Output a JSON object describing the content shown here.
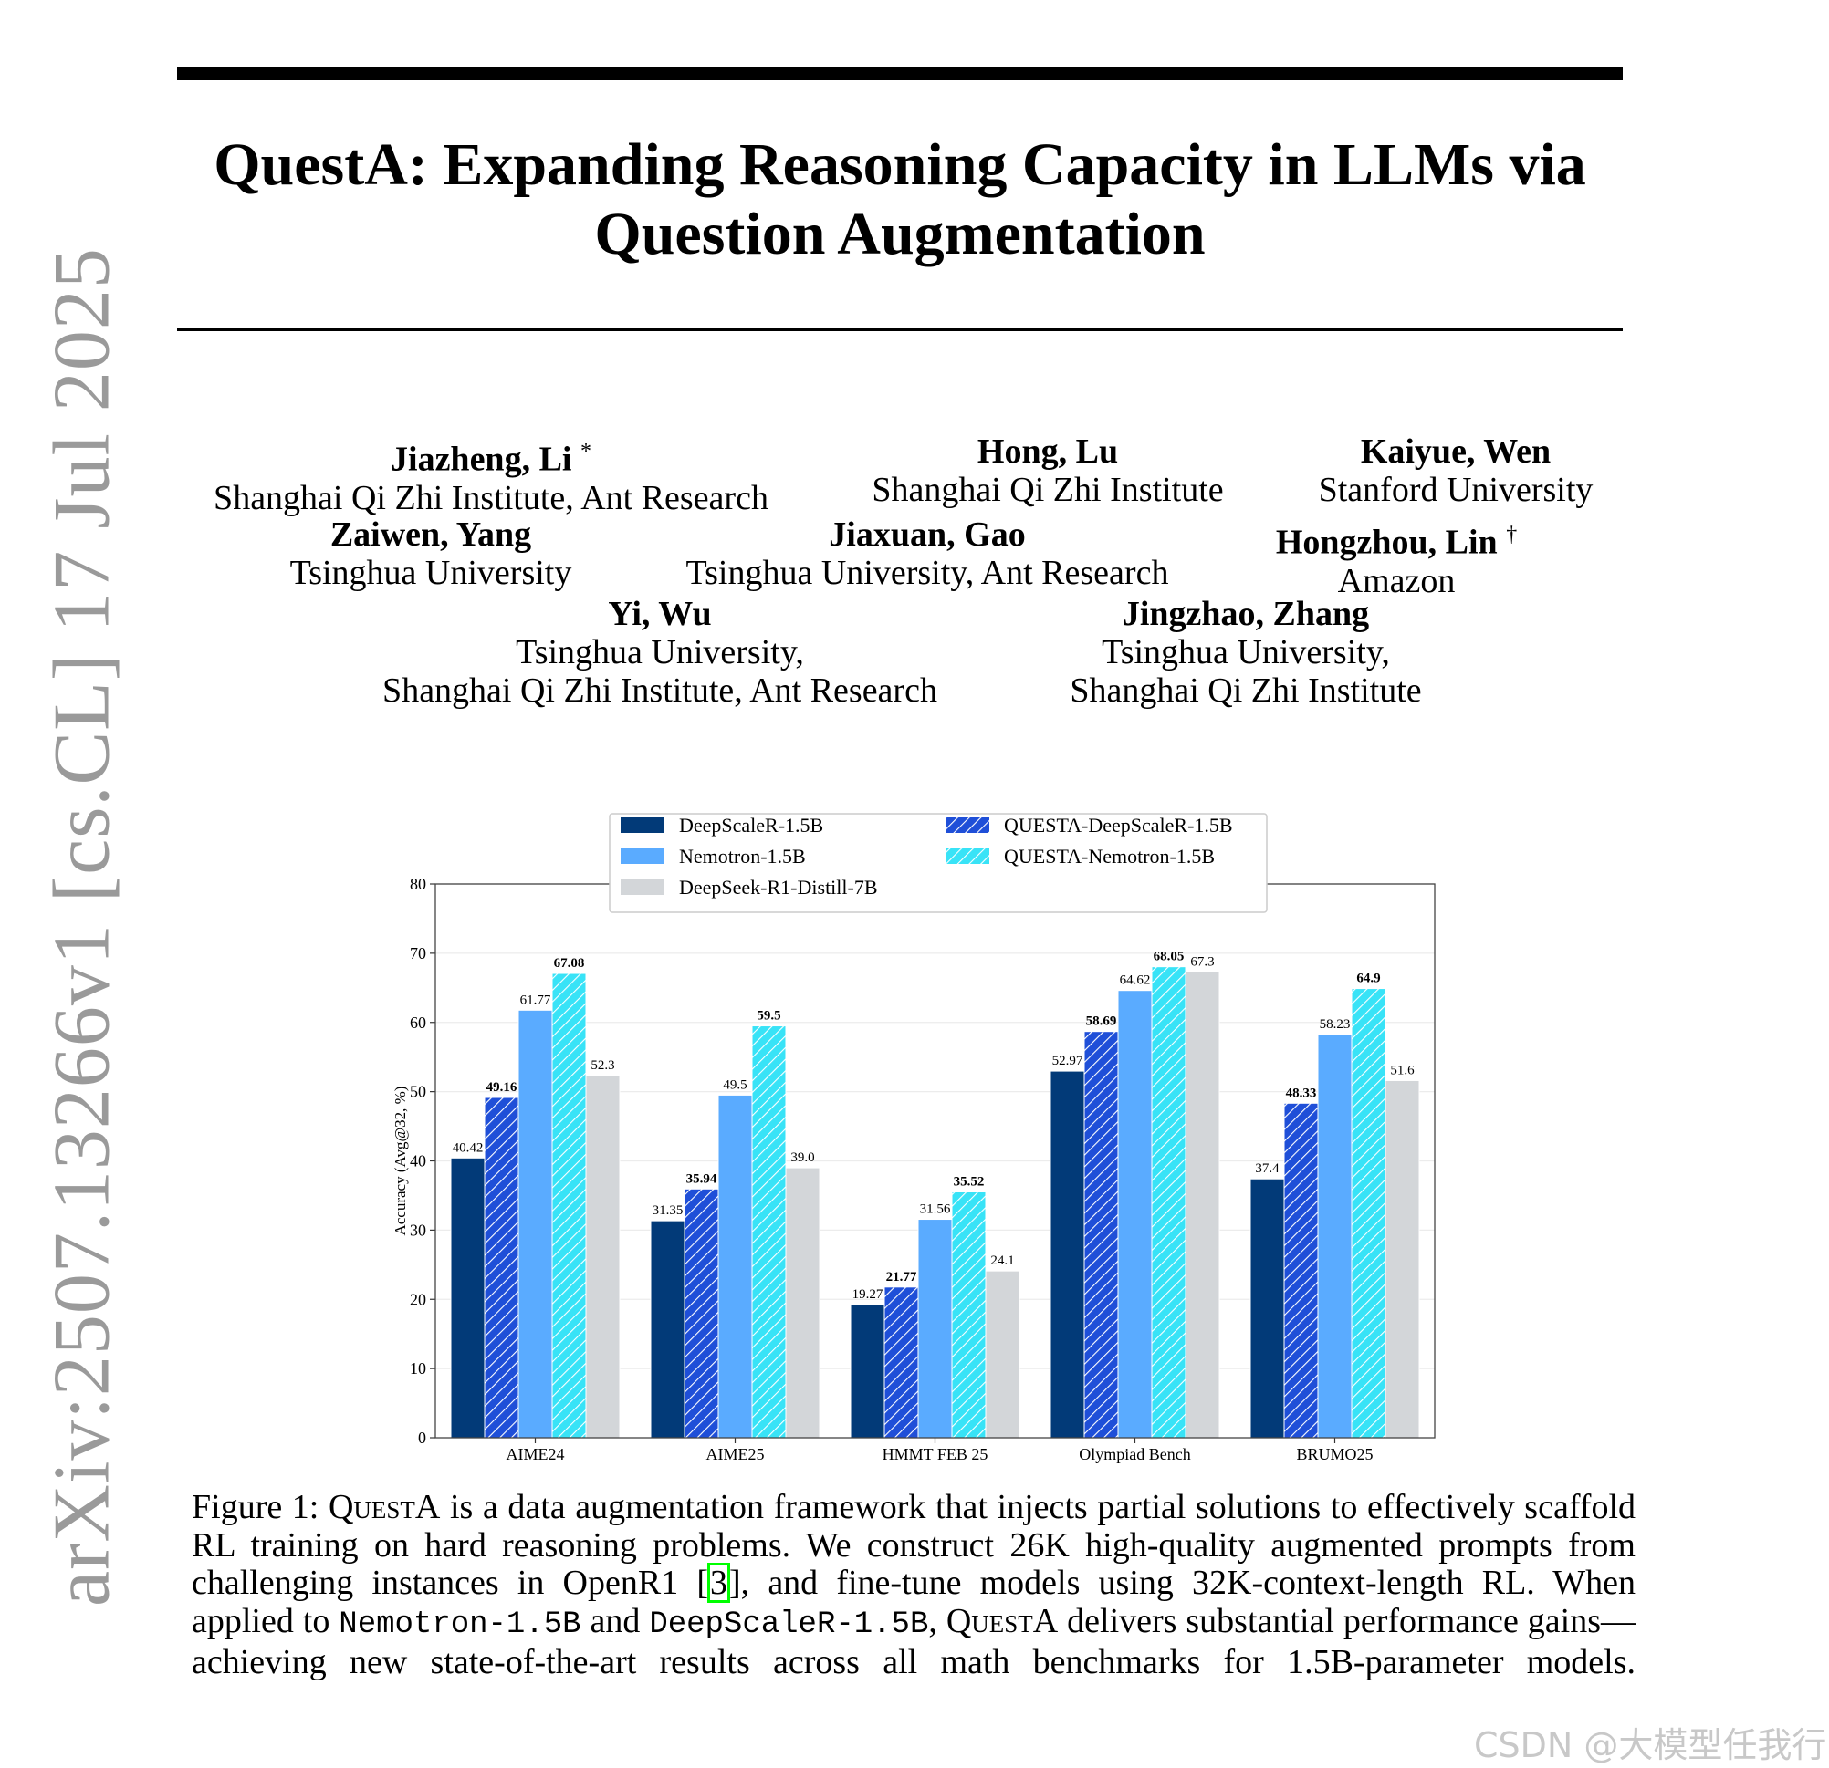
{
  "sidebar_stamp": "arXiv:2507.13266v1  [cs.CL]  17 Jul 2025",
  "title_lines": [
    "QuestA: Expanding Reasoning Capacity in LLMs via",
    "Question Augmentation"
  ],
  "authors": [
    {
      "name": "Jiazheng, Li",
      "mark": "*",
      "affiliation": [
        "Shanghai Qi Zhi Institute, Ant Research"
      ]
    },
    {
      "name": "Hong, Lu",
      "mark": "",
      "affiliation": [
        "Shanghai Qi Zhi Institute"
      ]
    },
    {
      "name": "Kaiyue, Wen",
      "mark": "",
      "affiliation": [
        "Stanford University"
      ]
    },
    {
      "name": "Zaiwen, Yang",
      "mark": "",
      "affiliation": [
        "Tsinghua University"
      ]
    },
    {
      "name": "Jiaxuan, Gao",
      "mark": "",
      "affiliation": [
        "Tsinghua University, Ant Research"
      ]
    },
    {
      "name": "Hongzhou, Lin",
      "mark": "†",
      "affiliation": [
        "Amazon"
      ]
    },
    {
      "name": "Yi, Wu",
      "mark": "",
      "affiliation": [
        "Tsinghua University,",
        "Shanghai Qi Zhi Institute, Ant Research"
      ]
    },
    {
      "name": "Jingzhao, Zhang",
      "mark": "",
      "affiliation": [
        "Tsinghua University,",
        "Shanghai Qi Zhi Institute"
      ]
    }
  ],
  "chart_data": {
    "type": "bar",
    "title": "",
    "xlabel": "",
    "ylabel": "Accuracy (Avg@32, %)",
    "ylim": [
      0,
      80
    ],
    "yticks": [
      0,
      10,
      20,
      30,
      40,
      50,
      60,
      70,
      80
    ],
    "grid": true,
    "legend_placement": "top-center",
    "categories": [
      "AIME24",
      "AIME25",
      "HMMT FEB 25",
      "Olympiad Bench",
      "BRUMO25"
    ],
    "series": [
      {
        "name": "DeepScaleR-1.5B",
        "color": "#023a78",
        "hatch": false,
        "bold_labels": false,
        "values": [
          40.42,
          31.35,
          19.27,
          52.97,
          37.4
        ],
        "labels": [
          "40.42",
          "31.35",
          "19.27",
          "52.97",
          "37.4"
        ]
      },
      {
        "name": "QUESTA-DeepScaleR-1.5B",
        "color": "#1f4fd8",
        "hatch": true,
        "bold_labels": true,
        "values": [
          49.16,
          35.94,
          21.77,
          58.69,
          48.33
        ],
        "labels": [
          "49.16",
          "35.94",
          "21.77",
          "58.69",
          "48.33"
        ]
      },
      {
        "name": "Nemotron-1.5B",
        "color": "#5aabff",
        "hatch": false,
        "bold_labels": false,
        "values": [
          61.77,
          49.5,
          31.56,
          64.62,
          58.23
        ],
        "labels": [
          "61.77",
          "49.5",
          "31.56",
          "64.62",
          "58.23"
        ]
      },
      {
        "name": "QUESTA-Nemotron-1.5B",
        "color": "#38e3f7",
        "hatch": true,
        "bold_labels": true,
        "values": [
          67.08,
          59.5,
          35.52,
          68.05,
          64.9
        ],
        "labels": [
          "67.08",
          "59.5",
          "35.52",
          "68.05",
          "64.9"
        ]
      },
      {
        "name": "DeepSeek-R1-Distill-7B",
        "color": "#d3d6d9",
        "hatch": false,
        "bold_labels": false,
        "values": [
          52.3,
          39.0,
          24.1,
          67.3,
          51.6
        ],
        "labels": [
          "52.3",
          "39.0",
          "24.1",
          "67.3",
          "51.6"
        ]
      }
    ]
  },
  "caption": {
    "p1": "Figure 1: ",
    "questa": "QuestA",
    "p2": " is a data augmentation framework that injects partial solutions to effectively scaffold RL training on hard reasoning problems. We construct 26K high-quality augmented prompts from challenging instances in OpenR1 [",
    "cite": "3",
    "p3": "], and fine-tune models using 32K-context-length RL. When applied to ",
    "model1": "Nemotron-1.5B",
    "p4": " and ",
    "model2": "DeepScaleR-1.5B",
    "p5": ", ",
    "questa2": "QuestA",
    "p6": " delivers substantial performance gains—achieving new state-of-the-art results across all math benchmarks for 1.5B-parameter models."
  },
  "watermark": "CSDN @大模型任我行"
}
